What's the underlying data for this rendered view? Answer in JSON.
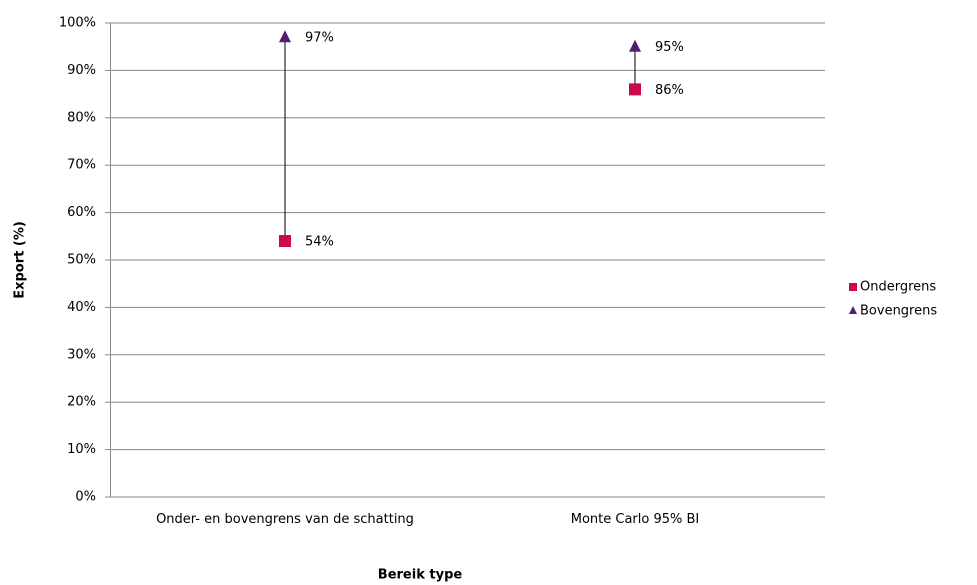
{
  "chart_data": {
    "type": "range",
    "categories": [
      "Onder- en bovengrens van de schatting",
      "Monte Carlo 95% BI"
    ],
    "series": [
      {
        "name": "Ondergrens",
        "color": "#cc0a4a",
        "marker": "square",
        "values": [
          54,
          86
        ],
        "value_labels": [
          "54%",
          "86%"
        ]
      },
      {
        "name": "Bovengrens",
        "color": "#4e1f73",
        "marker": "triangle",
        "values": [
          97,
          95
        ],
        "value_labels": [
          "97%",
          "95%"
        ]
      }
    ],
    "xlabel": "Bereik type",
    "ylabel": "Export (%)",
    "ylim": [
      0,
      100
    ],
    "yticks": [
      {
        "value": 0,
        "label": "0%"
      },
      {
        "value": 10,
        "label": "10%"
      },
      {
        "value": 20,
        "label": "20%"
      },
      {
        "value": 30,
        "label": "30%"
      },
      {
        "value": 40,
        "label": "40%"
      },
      {
        "value": 50,
        "label": "50%"
      },
      {
        "value": 60,
        "label": "60%"
      },
      {
        "value": 70,
        "label": "70%"
      },
      {
        "value": 80,
        "label": "80%"
      },
      {
        "value": 90,
        "label": "90%"
      },
      {
        "value": 100,
        "label": "100%"
      }
    ],
    "grid": true,
    "legend": "right"
  }
}
